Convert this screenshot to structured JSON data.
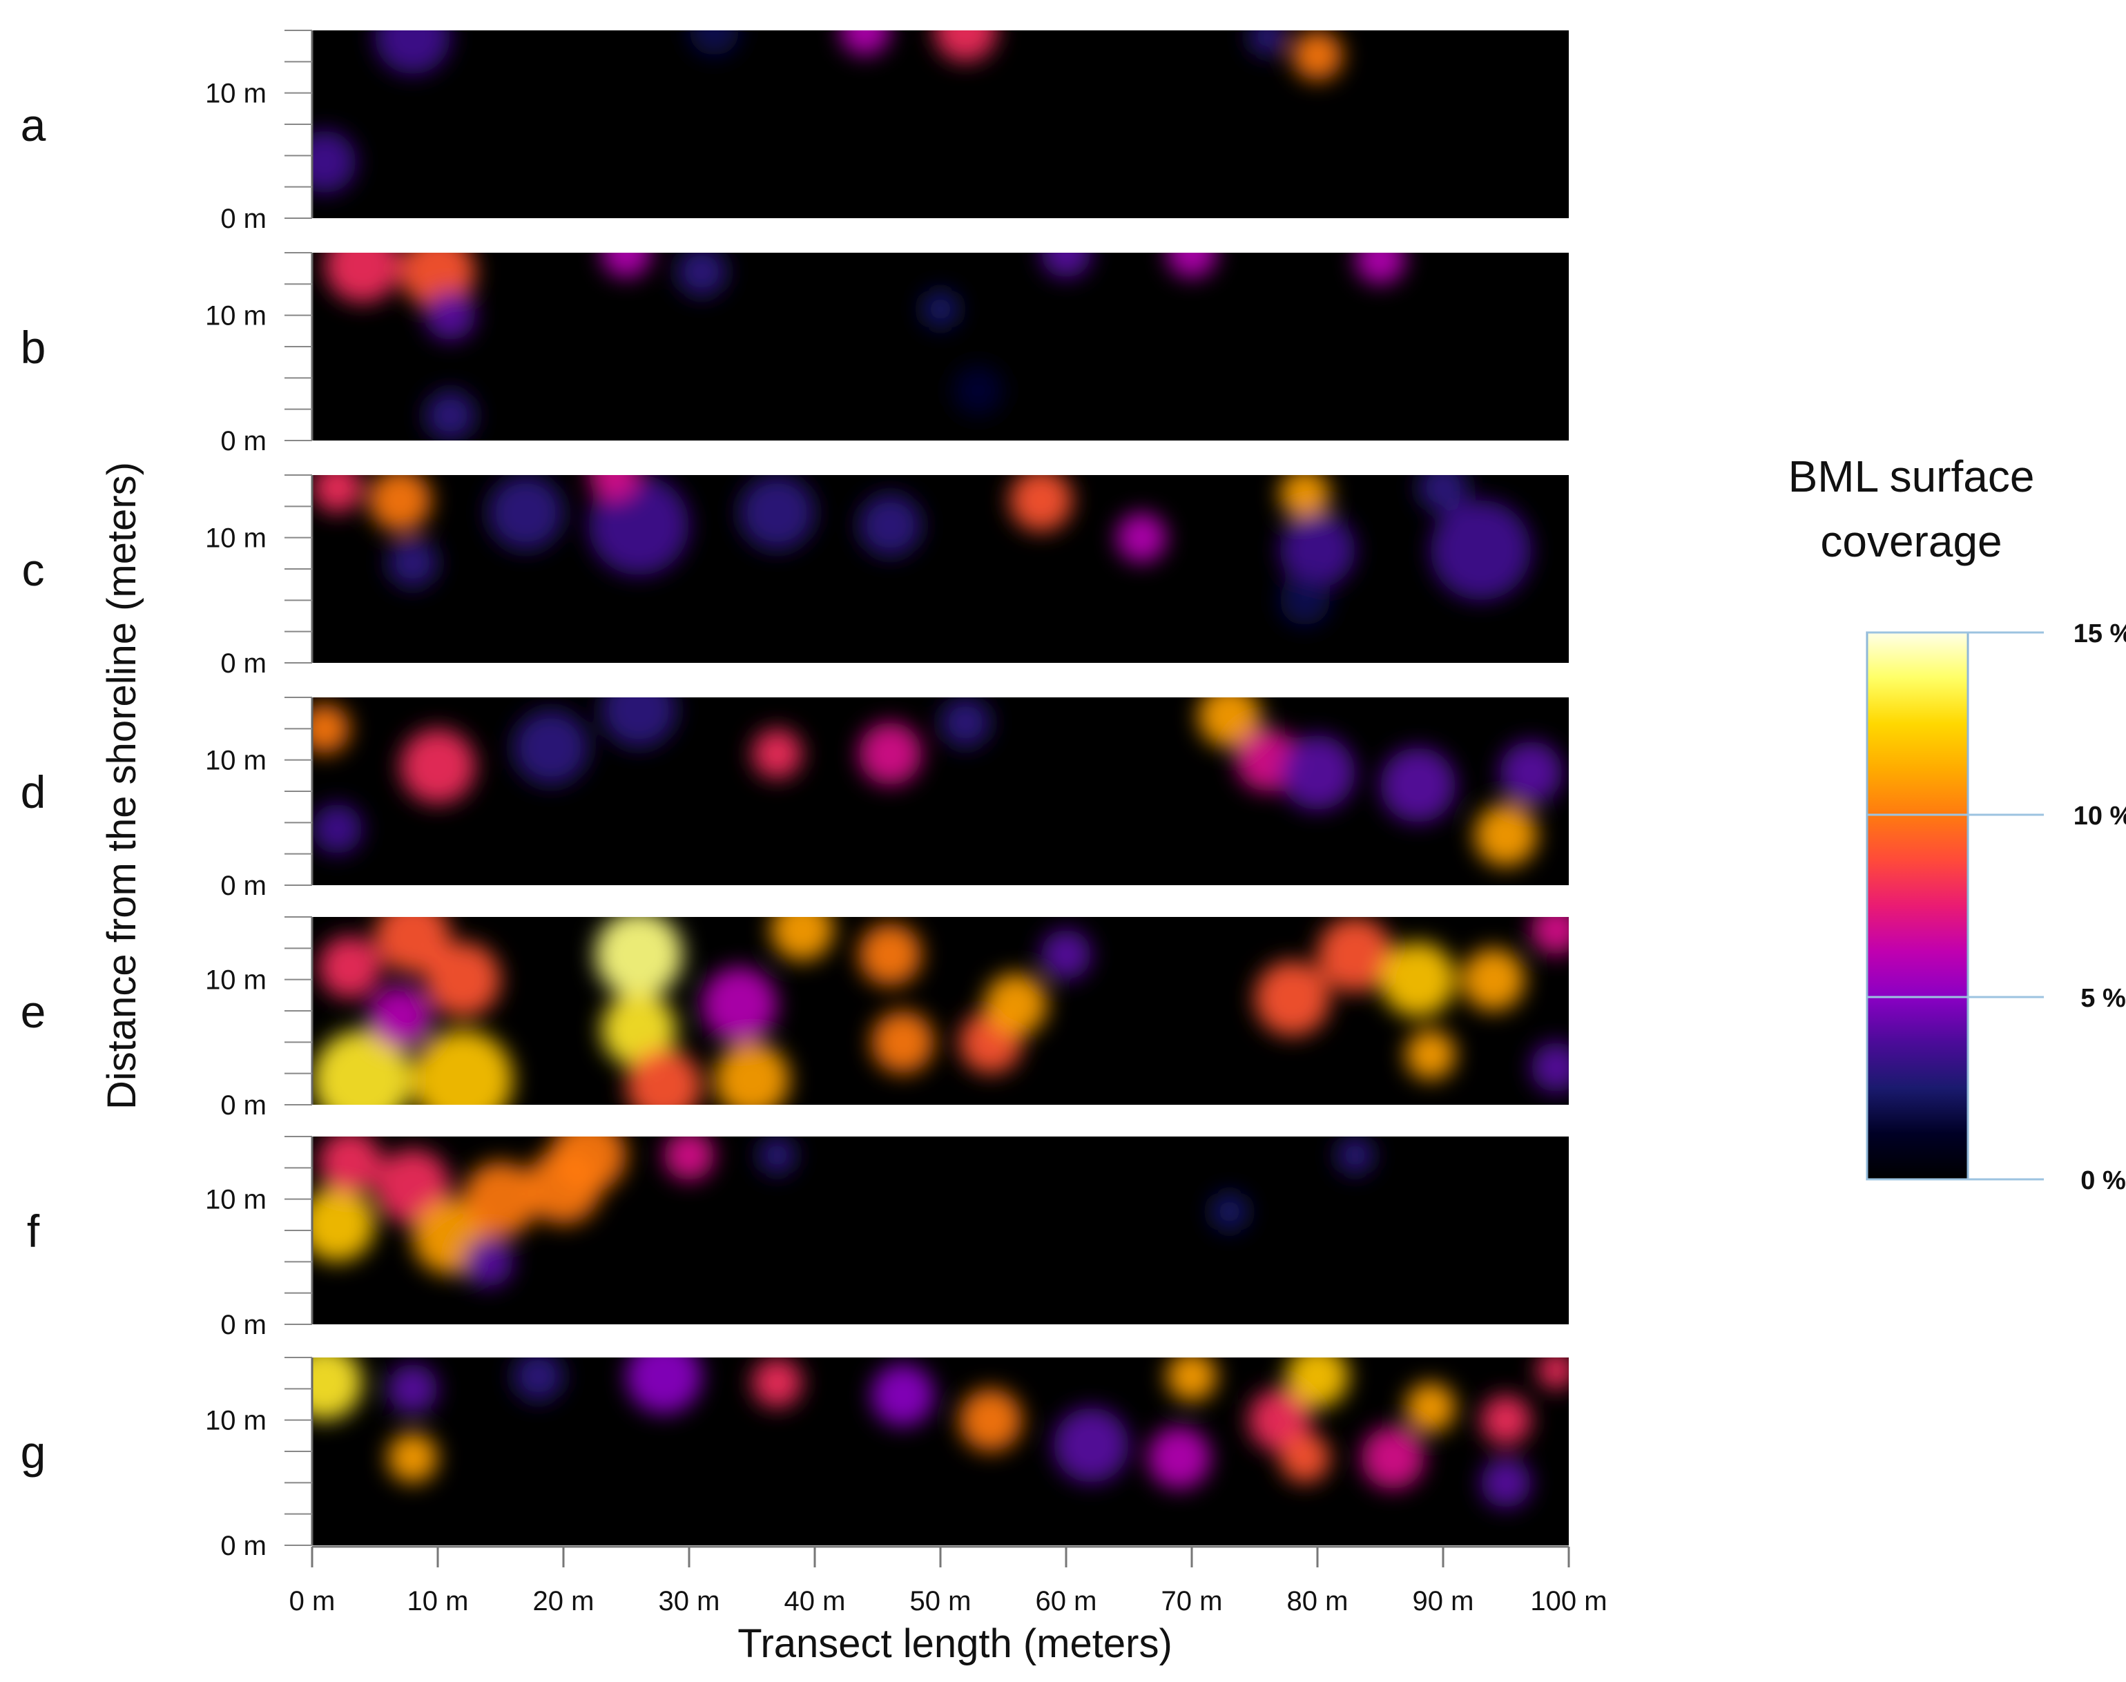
{
  "chart_data": {
    "type": "heatmap",
    "xlabel": "Transect length (meters)",
    "ylabel": "Distance from the shoreline (meters)",
    "x_ticks": [
      "0 m",
      "10 m",
      "20 m",
      "30 m",
      "40 m",
      "50 m",
      "60 m",
      "70 m",
      "80 m",
      "90 m",
      "100 m"
    ],
    "y_ticks": [
      "0 m",
      "10 m"
    ],
    "xlim": [
      0,
      100
    ],
    "ylim": [
      0,
      15
    ],
    "legend": {
      "title_lines": [
        "BML surface",
        "coverage"
      ],
      "ticks": [
        {
          "value": 15,
          "label": "15 %"
        },
        {
          "value": 10,
          "label": "10 %"
        },
        {
          "value": 5,
          "label": "5 %"
        },
        {
          "value": 0,
          "label": "0 %"
        }
      ],
      "range": [
        0,
        15
      ],
      "placement": "right",
      "colormap": [
        "#000000",
        "#000025",
        "#1a1a6e",
        "#4b0b99",
        "#8a00c4",
        "#c000b0",
        "#ea1b73",
        "#ff4a3a",
        "#ff7a10",
        "#ffab00",
        "#ffd800",
        "#ffff66",
        "#ffffe6"
      ]
    },
    "panels": [
      {
        "label": "a",
        "hotspots": [
          {
            "x": 8,
            "y": 14.5,
            "r": 3,
            "v": 3.5
          },
          {
            "x": 32,
            "y": 15,
            "r": 2,
            "v": 2
          },
          {
            "x": 44,
            "y": 15,
            "r": 2,
            "v": 6
          },
          {
            "x": 52,
            "y": 15,
            "r": 2.5,
            "v": 8
          },
          {
            "x": 80,
            "y": 13,
            "r": 2,
            "v": 10
          },
          {
            "x": 76,
            "y": 14.5,
            "r": 1.5,
            "v": 3
          },
          {
            "x": 1,
            "y": 4.5,
            "r": 2.5,
            "v": 3.5
          }
        ]
      },
      {
        "label": "b",
        "hotspots": [
          {
            "x": 4,
            "y": 14,
            "r": 3,
            "v": 8
          },
          {
            "x": 10,
            "y": 13.5,
            "r": 3,
            "v": 9
          },
          {
            "x": 11,
            "y": 10,
            "r": 2,
            "v": 4
          },
          {
            "x": 11,
            "y": 2,
            "r": 2,
            "v": 3
          },
          {
            "x": 25,
            "y": 15,
            "r": 2,
            "v": 6
          },
          {
            "x": 31,
            "y": 13.5,
            "r": 2,
            "v": 3
          },
          {
            "x": 50,
            "y": 10.5,
            "r": 1.5,
            "v": 2.5
          },
          {
            "x": 53,
            "y": 4,
            "r": 2,
            "v": 1.5
          },
          {
            "x": 60,
            "y": 15,
            "r": 2,
            "v": 4
          },
          {
            "x": 70,
            "y": 15,
            "r": 2,
            "v": 6
          },
          {
            "x": 85,
            "y": 14.5,
            "r": 2,
            "v": 6
          }
        ]
      },
      {
        "label": "c",
        "hotspots": [
          {
            "x": 7,
            "y": 13,
            "r": 2.5,
            "v": 10
          },
          {
            "x": 2,
            "y": 14,
            "r": 2,
            "v": 8
          },
          {
            "x": 8,
            "y": 8,
            "r": 2,
            "v": 3
          },
          {
            "x": 17,
            "y": 12,
            "r": 3,
            "v": 3
          },
          {
            "x": 26,
            "y": 11,
            "r": 4,
            "v": 3.5
          },
          {
            "x": 24,
            "y": 15,
            "r": 2,
            "v": 7
          },
          {
            "x": 37,
            "y": 12,
            "r": 3,
            "v": 3
          },
          {
            "x": 46,
            "y": 11,
            "r": 2.5,
            "v": 3
          },
          {
            "x": 58,
            "y": 13,
            "r": 2.5,
            "v": 9
          },
          {
            "x": 66,
            "y": 10,
            "r": 2,
            "v": 6
          },
          {
            "x": 79,
            "y": 13.5,
            "r": 2,
            "v": 11
          },
          {
            "x": 80,
            "y": 9,
            "r": 3,
            "v": 3.5
          },
          {
            "x": 79,
            "y": 5,
            "r": 2,
            "v": 2
          },
          {
            "x": 93,
            "y": 9,
            "r": 4,
            "v": 3.5
          },
          {
            "x": 90,
            "y": 14,
            "r": 2,
            "v": 3
          }
        ]
      },
      {
        "label": "d",
        "hotspots": [
          {
            "x": 1,
            "y": 12.5,
            "r": 2,
            "v": 10
          },
          {
            "x": 10,
            "y": 9.5,
            "r": 3,
            "v": 8
          },
          {
            "x": 2,
            "y": 4.5,
            "r": 2,
            "v": 3.5
          },
          {
            "x": 19,
            "y": 11,
            "r": 3,
            "v": 3
          },
          {
            "x": 26,
            "y": 14,
            "r": 3,
            "v": 3
          },
          {
            "x": 37,
            "y": 10.5,
            "r": 2,
            "v": 8
          },
          {
            "x": 46,
            "y": 10.5,
            "r": 2.5,
            "v": 7
          },
          {
            "x": 52,
            "y": 13,
            "r": 2,
            "v": 3
          },
          {
            "x": 73,
            "y": 13.5,
            "r": 2.5,
            "v": 11
          },
          {
            "x": 76,
            "y": 10,
            "r": 2.5,
            "v": 7
          },
          {
            "x": 80,
            "y": 9,
            "r": 3,
            "v": 4
          },
          {
            "x": 88,
            "y": 8,
            "r": 3,
            "v": 4
          },
          {
            "x": 95,
            "y": 4,
            "r": 2.5,
            "v": 11
          },
          {
            "x": 97,
            "y": 9,
            "r": 2.5,
            "v": 4
          }
        ]
      },
      {
        "label": "e",
        "hotspots": [
          {
            "x": 4,
            "y": 2,
            "r": 4,
            "v": 13
          },
          {
            "x": 12,
            "y": 2,
            "r": 4,
            "v": 12
          },
          {
            "x": 3,
            "y": 11,
            "r": 2.5,
            "v": 8
          },
          {
            "x": 8,
            "y": 13.5,
            "r": 3,
            "v": 9
          },
          {
            "x": 12,
            "y": 10,
            "r": 3,
            "v": 9
          },
          {
            "x": 7,
            "y": 7,
            "r": 2.5,
            "v": 6
          },
          {
            "x": 26,
            "y": 12,
            "r": 3.5,
            "v": 14
          },
          {
            "x": 26,
            "y": 6,
            "r": 3,
            "v": 13
          },
          {
            "x": 28,
            "y": 1.5,
            "r": 3,
            "v": 9
          },
          {
            "x": 35,
            "y": 2,
            "r": 3,
            "v": 11
          },
          {
            "x": 34,
            "y": 8,
            "r": 3,
            "v": 6
          },
          {
            "x": 39,
            "y": 14,
            "r": 2.5,
            "v": 11
          },
          {
            "x": 46,
            "y": 12,
            "r": 2.5,
            "v": 10
          },
          {
            "x": 47,
            "y": 5,
            "r": 2.5,
            "v": 10
          },
          {
            "x": 54,
            "y": 5,
            "r": 2.5,
            "v": 9
          },
          {
            "x": 56,
            "y": 8,
            "r": 2.5,
            "v": 11
          },
          {
            "x": 60,
            "y": 12,
            "r": 2,
            "v": 4
          },
          {
            "x": 78,
            "y": 8.5,
            "r": 3,
            "v": 9
          },
          {
            "x": 83,
            "y": 12,
            "r": 3,
            "v": 9
          },
          {
            "x": 88,
            "y": 10,
            "r": 3,
            "v": 12
          },
          {
            "x": 89,
            "y": 4,
            "r": 2,
            "v": 11
          },
          {
            "x": 94,
            "y": 10,
            "r": 2.5,
            "v": 11
          },
          {
            "x": 99,
            "y": 14,
            "r": 2,
            "v": 7
          },
          {
            "x": 99,
            "y": 3,
            "r": 2,
            "v": 4
          }
        ]
      },
      {
        "label": "f",
        "hotspots": [
          {
            "x": 2,
            "y": 8,
            "r": 3,
            "v": 12
          },
          {
            "x": 3,
            "y": 13,
            "r": 2.5,
            "v": 8
          },
          {
            "x": 8,
            "y": 11,
            "r": 3,
            "v": 8
          },
          {
            "x": 11,
            "y": 7,
            "r": 3,
            "v": 11
          },
          {
            "x": 15,
            "y": 10,
            "r": 3,
            "v": 10
          },
          {
            "x": 20,
            "y": 11,
            "r": 3,
            "v": 10
          },
          {
            "x": 22,
            "y": 13.5,
            "r": 3,
            "v": 10
          },
          {
            "x": 14,
            "y": 5,
            "r": 2,
            "v": 4
          },
          {
            "x": 30,
            "y": 13.5,
            "r": 2,
            "v": 7
          },
          {
            "x": 37,
            "y": 13.5,
            "r": 1.5,
            "v": 3
          },
          {
            "x": 73,
            "y": 9,
            "r": 1.5,
            "v": 2.5
          },
          {
            "x": 83,
            "y": 13.5,
            "r": 1.5,
            "v": 3
          }
        ]
      },
      {
        "label": "g",
        "hotspots": [
          {
            "x": 1,
            "y": 13,
            "r": 3,
            "v": 13
          },
          {
            "x": 8,
            "y": 7,
            "r": 2,
            "v": 11
          },
          {
            "x": 8,
            "y": 12.5,
            "r": 2,
            "v": 4
          },
          {
            "x": 18,
            "y": 13.5,
            "r": 2,
            "v": 3
          },
          {
            "x": 28,
            "y": 13.5,
            "r": 3,
            "v": 5
          },
          {
            "x": 37,
            "y": 13,
            "r": 2,
            "v": 8
          },
          {
            "x": 47,
            "y": 12,
            "r": 2.5,
            "v": 5
          },
          {
            "x": 54,
            "y": 10,
            "r": 2.5,
            "v": 10
          },
          {
            "x": 62,
            "y": 8,
            "r": 3,
            "v": 4
          },
          {
            "x": 69,
            "y": 7,
            "r": 2.5,
            "v": 6
          },
          {
            "x": 70,
            "y": 13.5,
            "r": 2,
            "v": 11
          },
          {
            "x": 77,
            "y": 10,
            "r": 2.5,
            "v": 8
          },
          {
            "x": 80,
            "y": 13.5,
            "r": 2.5,
            "v": 12
          },
          {
            "x": 79,
            "y": 7,
            "r": 2,
            "v": 9
          },
          {
            "x": 86,
            "y": 7,
            "r": 2.5,
            "v": 7
          },
          {
            "x": 89,
            "y": 11,
            "r": 2,
            "v": 11
          },
          {
            "x": 95,
            "y": 10,
            "r": 2,
            "v": 8
          },
          {
            "x": 95,
            "y": 5,
            "r": 2,
            "v": 4
          },
          {
            "x": 99,
            "y": 14,
            "r": 1.5,
            "v": 8
          }
        ]
      }
    ]
  }
}
